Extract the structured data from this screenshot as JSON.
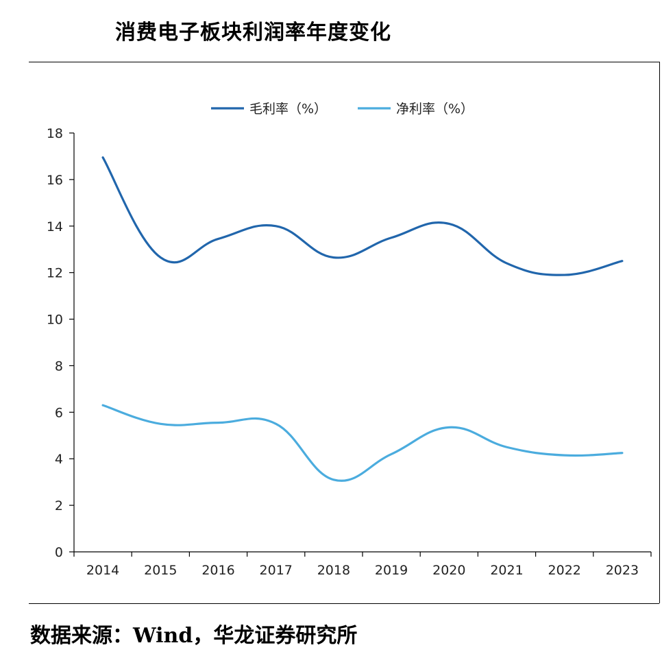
{
  "title": "消费电子板块利润率年度变化",
  "source": "数据来源：Wind，华龙证券研究所",
  "chart_data": {
    "type": "line",
    "categories": [
      "2014",
      "2015",
      "2016",
      "2017",
      "2018",
      "2019",
      "2020",
      "2021",
      "2022",
      "2023"
    ],
    "series": [
      {
        "name": "毛利率（%）",
        "color": "#2166ac",
        "values": [
          16.95,
          12.65,
          13.45,
          14.0,
          12.65,
          13.5,
          14.1,
          12.4,
          11.9,
          12.5
        ]
      },
      {
        "name": "净利率（%）",
        "color": "#4bacde",
        "values": [
          6.3,
          5.5,
          5.55,
          5.5,
          3.1,
          4.2,
          5.35,
          4.5,
          4.15,
          4.25
        ]
      }
    ],
    "ylim": [
      0,
      18
    ],
    "yticks": [
      0,
      2,
      4,
      6,
      8,
      10,
      12,
      14,
      16,
      18
    ],
    "xlabel": "",
    "ylabel": "",
    "grid": false,
    "legend": "top-center"
  }
}
